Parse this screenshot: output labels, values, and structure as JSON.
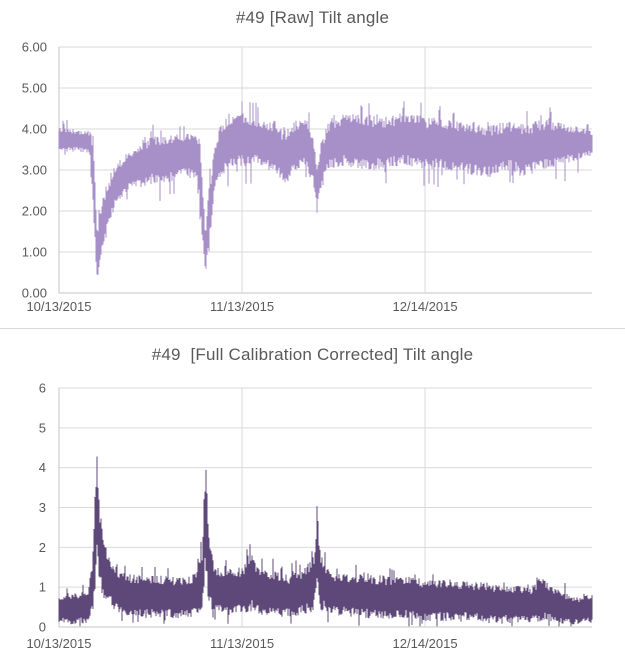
{
  "colors": {
    "raw_series": "#a78fc7",
    "corrected_series": "#5d4879",
    "title_text": "#595959",
    "tick_text": "#595959",
    "gridline": "#d9d9d9",
    "axis_line": "#c4c4c4",
    "background": "#ffffff"
  },
  "charts": [
    {
      "title": "#49 [Raw] Tilt angle",
      "color_key": "raw_series",
      "y_ticks": [
        {
          "v": 0,
          "label": "0.00"
        },
        {
          "v": 1,
          "label": "1.00"
        },
        {
          "v": 2,
          "label": "2.00"
        },
        {
          "v": 3,
          "label": "3.00"
        },
        {
          "v": 4,
          "label": "4.00"
        },
        {
          "v": 5,
          "label": "5.00"
        },
        {
          "v": 6,
          "label": "6.00"
        }
      ],
      "x_ticks": [
        {
          "t": 0.0,
          "label": "10/13/2015",
          "grid": false
        },
        {
          "t": 0.3434,
          "label": "11/13/2015",
          "grid": true
        },
        {
          "t": 0.6868,
          "label": "12/14/2015",
          "grid": true
        }
      ],
      "ylim": [
        0,
        6
      ],
      "noise": {
        "edge_jitter": 0.22,
        "spike_up": 0.35,
        "spike_down": 0.45,
        "floor": 0.0
      }
    },
    {
      "title": "#49  [Full Calibration Corrected] Tilt angle",
      "color_key": "corrected_series",
      "y_ticks": [
        {
          "v": 0,
          "label": "0"
        },
        {
          "v": 1,
          "label": "1"
        },
        {
          "v": 2,
          "label": "2"
        },
        {
          "v": 3,
          "label": "3"
        },
        {
          "v": 4,
          "label": "4"
        },
        {
          "v": 5,
          "label": "5"
        },
        {
          "v": 6,
          "label": "6"
        }
      ],
      "x_ticks": [
        {
          "t": 0.0,
          "label": "10/13/2015",
          "grid": false
        },
        {
          "t": 0.3434,
          "label": "11/13/2015",
          "grid": true
        },
        {
          "t": 0.6868,
          "label": "12/14/2015",
          "grid": true
        }
      ],
      "ylim": [
        0,
        6
      ],
      "noise": {
        "edge_jitter": 0.22,
        "spike_up": 0.3,
        "spike_down": 0.25,
        "floor": 0.02
      }
    }
  ],
  "chart_data": [
    {
      "type": "line",
      "title": "#49 [Raw] Tilt angle",
      "xlabel": "",
      "ylabel": "",
      "x_tick_labels": [
        "10/13/2015",
        "11/13/2015",
        "12/14/2015"
      ],
      "ylim": [
        0,
        6
      ],
      "grid": true,
      "legend": "none",
      "series_description": "dense noisy tilt-angle trace, mostly 3.0-4.2 deg, with sharp dips to ~0.3 near 10/20, ~0.35 near 11/08, and ~1.9 near 11/27",
      "envelope_format": [
        "t_frac_of_x_axis",
        "lo_value",
        "hi_value"
      ],
      "envelope": [
        [
          0.0,
          3.45,
          4.05
        ],
        [
          0.03,
          3.45,
          4.0
        ],
        [
          0.058,
          3.4,
          3.95
        ],
        [
          0.064,
          2.0,
          3.9
        ],
        [
          0.069,
          0.6,
          2.4
        ],
        [
          0.072,
          0.3,
          1.4
        ],
        [
          0.077,
          0.7,
          2.1
        ],
        [
          0.09,
          1.4,
          2.7
        ],
        [
          0.105,
          2.1,
          3.1
        ],
        [
          0.125,
          2.45,
          3.4
        ],
        [
          0.15,
          2.55,
          3.6
        ],
        [
          0.175,
          2.65,
          3.85
        ],
        [
          0.205,
          2.7,
          3.85
        ],
        [
          0.235,
          2.8,
          3.9
        ],
        [
          0.258,
          2.8,
          3.95
        ],
        [
          0.266,
          1.8,
          3.6
        ],
        [
          0.2745,
          0.35,
          1.6
        ],
        [
          0.281,
          0.9,
          2.6
        ],
        [
          0.291,
          2.4,
          3.5
        ],
        [
          0.302,
          2.8,
          4.05
        ],
        [
          0.318,
          3.0,
          4.4
        ],
        [
          0.332,
          3.0,
          4.45
        ],
        [
          0.345,
          3.1,
          4.4
        ],
        [
          0.375,
          3.1,
          4.3
        ],
        [
          0.405,
          2.9,
          4.2
        ],
        [
          0.422,
          2.6,
          4.0
        ],
        [
          0.442,
          2.9,
          4.2
        ],
        [
          0.462,
          3.1,
          4.3
        ],
        [
          0.477,
          2.6,
          3.9
        ],
        [
          0.4845,
          1.9,
          3.2
        ],
        [
          0.492,
          2.5,
          3.7
        ],
        [
          0.505,
          3.0,
          4.2
        ],
        [
          0.535,
          3.1,
          4.4
        ],
        [
          0.565,
          3.0,
          4.4
        ],
        [
          0.605,
          3.0,
          4.3
        ],
        [
          0.645,
          3.1,
          4.4
        ],
        [
          0.69,
          3.0,
          4.3
        ],
        [
          0.725,
          3.0,
          4.25
        ],
        [
          0.765,
          2.9,
          4.2
        ],
        [
          0.805,
          2.8,
          4.1
        ],
        [
          0.845,
          3.0,
          4.2
        ],
        [
          0.875,
          2.85,
          4.1
        ],
        [
          0.905,
          3.0,
          4.25
        ],
        [
          0.935,
          3.1,
          4.2
        ],
        [
          0.965,
          3.2,
          4.1
        ],
        [
          0.985,
          3.3,
          4.0
        ],
        [
          1.0,
          3.35,
          3.95
        ]
      ]
    },
    {
      "type": "line",
      "title": "#49  [Full Calibration Corrected] Tilt angle",
      "xlabel": "",
      "ylabel": "",
      "x_tick_labels": [
        "10/13/2015",
        "11/13/2015",
        "12/14/2015"
      ],
      "ylim": [
        0,
        6
      ],
      "grid": true,
      "legend": "none",
      "series_description": "dense noisy corrected trace, mostly 0.1-1.3 deg, with sharp spikes to ~4.4 near 10/20, ~4.6 near 11/08, and ~3.0 near 11/27, slowly decaying toward December",
      "envelope_format": [
        "t_frac_of_x_axis",
        "lo_value",
        "hi_value"
      ],
      "envelope": [
        [
          0.0,
          0.1,
          0.75
        ],
        [
          0.03,
          0.05,
          0.85
        ],
        [
          0.055,
          0.1,
          0.95
        ],
        [
          0.063,
          0.3,
          1.8
        ],
        [
          0.068,
          1.0,
          3.6
        ],
        [
          0.0715,
          2.0,
          4.45
        ],
        [
          0.076,
          1.0,
          3.0
        ],
        [
          0.085,
          0.7,
          2.2
        ],
        [
          0.098,
          0.5,
          1.7
        ],
        [
          0.115,
          0.3,
          1.45
        ],
        [
          0.145,
          0.2,
          1.3
        ],
        [
          0.185,
          0.25,
          1.3
        ],
        [
          0.225,
          0.2,
          1.25
        ],
        [
          0.258,
          0.25,
          1.35
        ],
        [
          0.269,
          0.4,
          2.0
        ],
        [
          0.2755,
          1.4,
          4.6
        ],
        [
          0.281,
          0.6,
          2.3
        ],
        [
          0.292,
          0.35,
          1.55
        ],
        [
          0.315,
          0.3,
          1.45
        ],
        [
          0.345,
          0.3,
          1.55
        ],
        [
          0.358,
          0.4,
          1.95
        ],
        [
          0.372,
          0.3,
          1.6
        ],
        [
          0.405,
          0.25,
          1.4
        ],
        [
          0.435,
          0.25,
          1.3
        ],
        [
          0.462,
          0.3,
          1.5
        ],
        [
          0.478,
          0.4,
          1.8
        ],
        [
          0.4845,
          1.0,
          3.0
        ],
        [
          0.491,
          0.4,
          1.8
        ],
        [
          0.512,
          0.3,
          1.4
        ],
        [
          0.552,
          0.25,
          1.35
        ],
        [
          0.602,
          0.2,
          1.3
        ],
        [
          0.652,
          0.2,
          1.25
        ],
        [
          0.69,
          0.15,
          1.2
        ],
        [
          0.732,
          0.15,
          1.2
        ],
        [
          0.772,
          0.15,
          1.15
        ],
        [
          0.812,
          0.1,
          1.1
        ],
        [
          0.852,
          0.1,
          1.05
        ],
        [
          0.885,
          0.1,
          1.0
        ],
        [
          0.907,
          0.15,
          1.3
        ],
        [
          0.927,
          0.1,
          1.0
        ],
        [
          0.952,
          0.05,
          0.85
        ],
        [
          0.975,
          0.05,
          0.75
        ],
        [
          0.99,
          0.1,
          0.9
        ],
        [
          1.0,
          0.1,
          0.8
        ]
      ]
    }
  ]
}
